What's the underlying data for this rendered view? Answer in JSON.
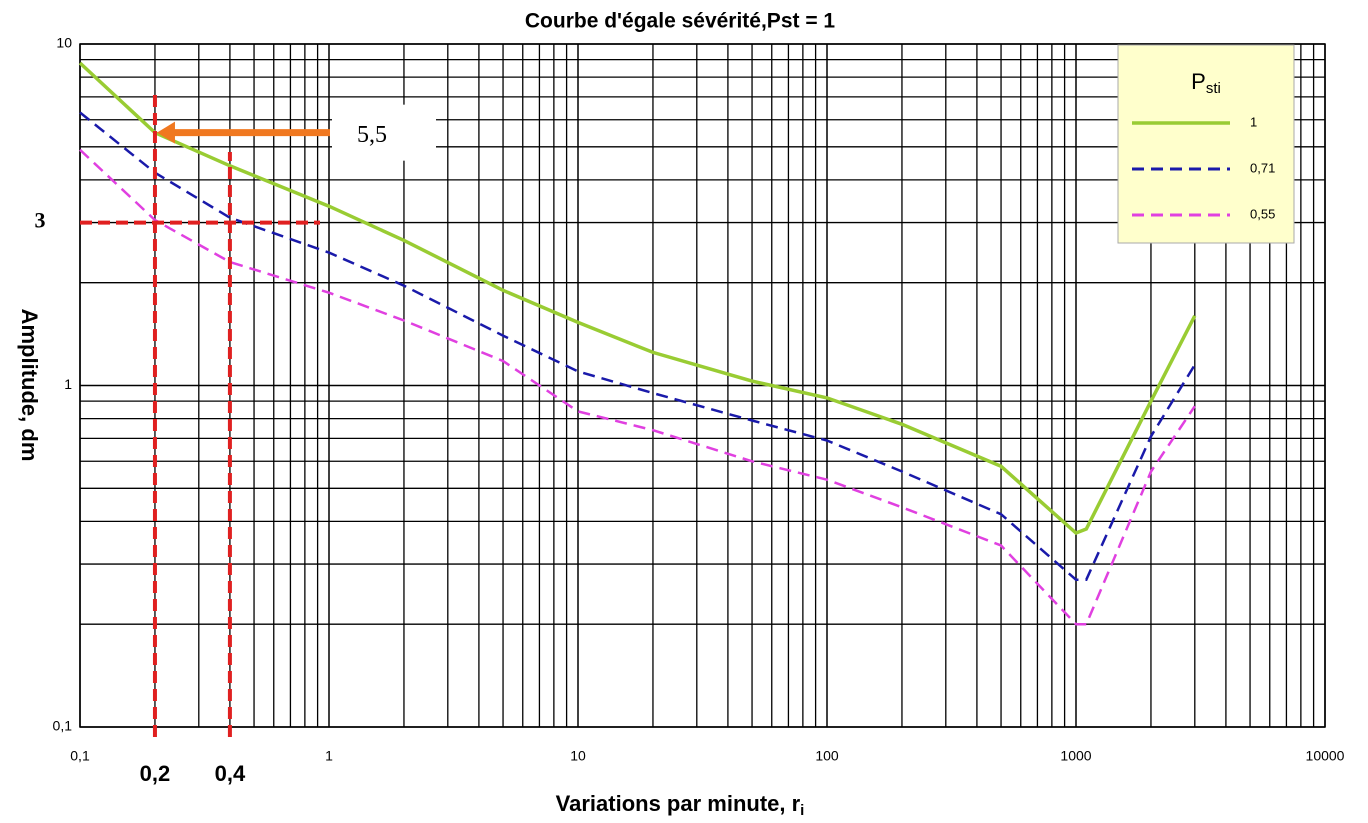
{
  "chart_data": {
    "type": "line",
    "title": "Courbe d'égale sévérité,Pst = 1",
    "x_label": "Variations par minute, r",
    "x_label_sub": "i",
    "y_label": "Amplitude, dm",
    "legend_title": "P",
    "legend_title_sub": "sti",
    "legend_position": "upper right",
    "log_x": true,
    "log_y": true,
    "grid": true,
    "xlim": [
      0.1,
      10000
    ],
    "ylim": [
      0.1,
      10
    ],
    "xticks": [
      {
        "value": 0.1,
        "label": "0,1"
      },
      1,
      10,
      100,
      1000,
      10000
    ],
    "yticks": [
      {
        "value": 0.1,
        "label": "0,1"
      },
      1,
      10
    ],
    "x": [
      0.1,
      0.2,
      0.4,
      1,
      2,
      5,
      10,
      20,
      50,
      100,
      200,
      500,
      1000,
      1100,
      2000,
      3000
    ],
    "series": [
      {
        "name": "1",
        "color": "#99cc33",
        "dash": "solid",
        "values": [
          8.8,
          5.5,
          4.4,
          3.35,
          2.66,
          1.9,
          1.53,
          1.25,
          1.03,
          0.92,
          0.77,
          0.58,
          0.37,
          0.38,
          0.9,
          1.6
        ]
      },
      {
        "name": "0,71",
        "color": "#1a1aaa",
        "dash": "dashed",
        "values": [
          6.3,
          4.2,
          3.1,
          2.45,
          1.96,
          1.4,
          1.1,
          0.95,
          0.79,
          0.69,
          0.56,
          0.42,
          0.27,
          0.27,
          0.71,
          1.15
        ]
      },
      {
        "name": "0,55",
        "color": "#e040e0",
        "dash": "dashed",
        "values": [
          4.9,
          3.05,
          2.3,
          1.87,
          1.55,
          1.18,
          0.84,
          0.74,
          0.6,
          0.53,
          0.44,
          0.34,
          0.2,
          0.2,
          0.56,
          0.87
        ]
      }
    ],
    "annotations": [
      {
        "label": "5,5",
        "y": 5.5
      },
      {
        "label": "3",
        "y": 3
      },
      {
        "label": "0,2",
        "x": 0.2
      },
      {
        "label": "0,4",
        "x": 0.4
      }
    ],
    "annotation_color": "#e02020",
    "arrow_color": "#f07820"
  }
}
